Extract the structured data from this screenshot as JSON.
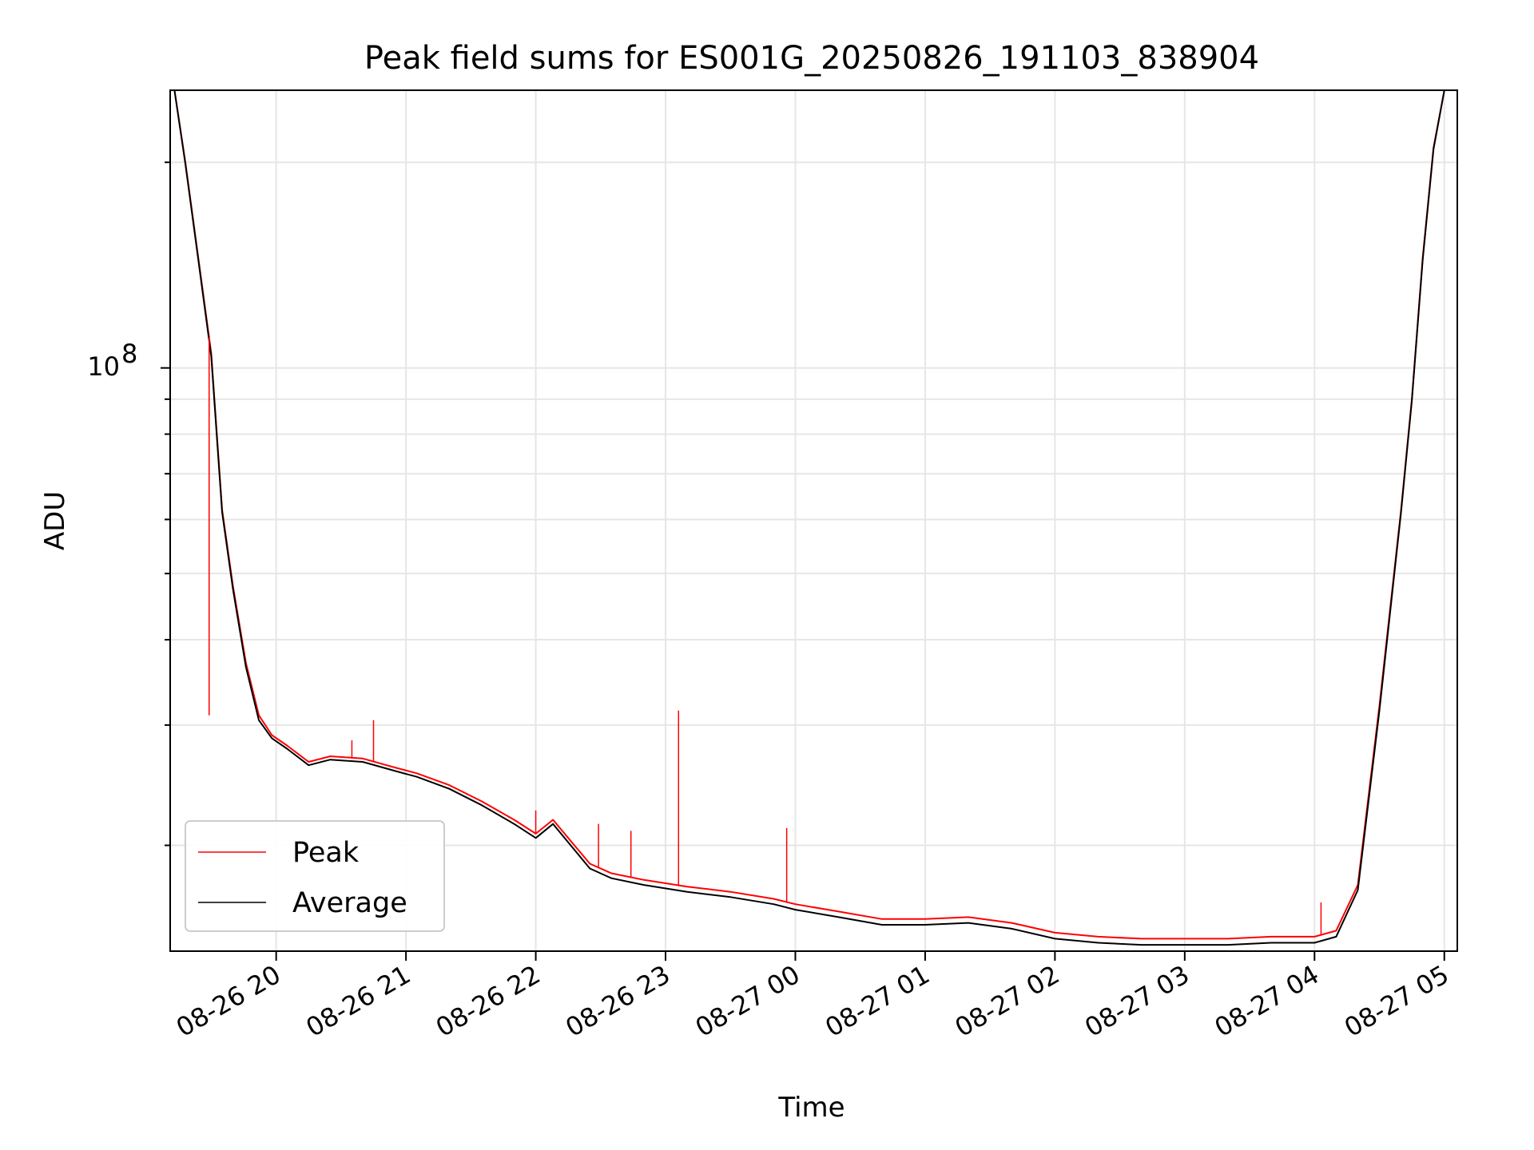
{
  "chart_data": {
    "type": "line",
    "title": "Peak field sums for ES001G_20250826_191103_838904",
    "xlabel": "Time",
    "ylabel": "ADU",
    "yscale": "log",
    "grid": true,
    "legend_position": "lower-left",
    "xlim": [
      "2025-08-26 19:11",
      "2025-08-27 05:06"
    ],
    "ylim": [
      14000000,
      255000000
    ],
    "x_ticks": [
      "08-26 20",
      "08-26 21",
      "08-26 22",
      "08-26 23",
      "08-27 00",
      "08-27 01",
      "08-27 02",
      "08-27 03",
      "08-27 04",
      "08-27 05"
    ],
    "y_tick_label": "10^8",
    "y_tick_base": "10",
    "y_tick_exponent": "8",
    "series": [
      {
        "name": "Peak",
        "color": "#ff0000",
        "x": [
          "2025-08-26 19:11",
          "2025-08-26 19:13",
          "2025-08-26 19:18",
          "2025-08-26 19:24",
          "2025-08-26 19:30",
          "2025-08-26 19:35",
          "2025-08-26 19:40",
          "2025-08-26 19:46",
          "2025-08-26 19:52",
          "2025-08-26 19:58",
          "2025-08-26 20:05",
          "2025-08-26 20:15",
          "2025-08-26 20:25",
          "2025-08-26 20:40",
          "2025-08-26 20:55",
          "2025-08-26 21:05",
          "2025-08-26 21:20",
          "2025-08-26 21:35",
          "2025-08-26 21:50",
          "2025-08-26 22:00",
          "2025-08-26 22:08",
          "2025-08-26 22:15",
          "2025-08-26 22:25",
          "2025-08-26 22:35",
          "2025-08-26 22:50",
          "2025-08-26 23:10",
          "2025-08-26 23:30",
          "2025-08-26 23:50",
          "2025-08-27 00:00",
          "2025-08-27 00:20",
          "2025-08-27 00:40",
          "2025-08-27 01:00",
          "2025-08-27 01:20",
          "2025-08-27 01:40",
          "2025-08-27 02:00",
          "2025-08-27 02:20",
          "2025-08-27 02:40",
          "2025-08-27 03:00",
          "2025-08-27 03:20",
          "2025-08-27 03:40",
          "2025-08-27 04:00",
          "2025-08-27 04:10",
          "2025-08-27 04:20",
          "2025-08-27 04:30",
          "2025-08-27 04:40",
          "2025-08-27 04:45",
          "2025-08-27 04:50",
          "2025-08-27 04:55",
          "2025-08-27 05:00",
          "2025-08-27 05:06"
        ],
        "y": [
          255000000,
          255000000,
          200000000,
          145000000,
          105000000,
          62000000,
          48000000,
          37000000,
          31000000,
          29000000,
          28000000,
          26500000,
          27000000,
          26800000,
          26000000,
          25500000,
          24500000,
          23200000,
          21800000,
          20800000,
          21800000,
          20500000,
          18800000,
          18200000,
          17800000,
          17400000,
          17100000,
          16700000,
          16400000,
          16000000,
          15600000,
          15600000,
          15700000,
          15400000,
          14900000,
          14700000,
          14600000,
          14600000,
          14600000,
          14700000,
          14700000,
          15000000,
          17500000,
          32000000,
          62000000,
          90000000,
          145000000,
          210000000,
          255000000,
          255000000
        ]
      },
      {
        "name": "Average",
        "color": "#000000",
        "x": [
          "2025-08-26 19:11",
          "2025-08-26 19:13",
          "2025-08-26 19:18",
          "2025-08-26 19:24",
          "2025-08-26 19:30",
          "2025-08-26 19:35",
          "2025-08-26 19:40",
          "2025-08-26 19:46",
          "2025-08-26 19:52",
          "2025-08-26 19:58",
          "2025-08-26 20:05",
          "2025-08-26 20:15",
          "2025-08-26 20:25",
          "2025-08-26 20:40",
          "2025-08-26 20:55",
          "2025-08-26 21:05",
          "2025-08-26 21:20",
          "2025-08-26 21:35",
          "2025-08-26 21:50",
          "2025-08-26 22:00",
          "2025-08-26 22:08",
          "2025-08-26 22:15",
          "2025-08-26 22:25",
          "2025-08-26 22:35",
          "2025-08-26 22:50",
          "2025-08-26 23:10",
          "2025-08-26 23:30",
          "2025-08-26 23:50",
          "2025-08-27 00:00",
          "2025-08-27 00:20",
          "2025-08-27 00:40",
          "2025-08-27 01:00",
          "2025-08-27 01:20",
          "2025-08-27 01:40",
          "2025-08-27 02:00",
          "2025-08-27 02:20",
          "2025-08-27 02:40",
          "2025-08-27 03:00",
          "2025-08-27 03:20",
          "2025-08-27 03:40",
          "2025-08-27 04:00",
          "2025-08-27 04:10",
          "2025-08-27 04:20",
          "2025-08-27 04:30",
          "2025-08-27 04:40",
          "2025-08-27 04:45",
          "2025-08-27 04:50",
          "2025-08-27 04:55",
          "2025-08-27 05:00",
          "2025-08-27 05:06"
        ],
        "y": [
          255000000,
          255000000,
          199000000,
          144000000,
          104000000,
          61500000,
          47500000,
          36500000,
          30500000,
          28700000,
          27700000,
          26200000,
          26700000,
          26500000,
          25700000,
          25200000,
          24200000,
          22900000,
          21500000,
          20500000,
          21500000,
          20200000,
          18500000,
          17900000,
          17500000,
          17100000,
          16800000,
          16400000,
          16100000,
          15700000,
          15300000,
          15300000,
          15400000,
          15100000,
          14600000,
          14400000,
          14300000,
          14300000,
          14300000,
          14400000,
          14400000,
          14700000,
          17200000,
          31500000,
          61500000,
          89500000,
          144000000,
          209000000,
          255000000,
          255000000
        ]
      }
    ],
    "spikes": [
      {
        "x": "2025-08-26 19:29",
        "y": 31000000
      },
      {
        "x": "2025-08-26 20:35",
        "y": 28500000
      },
      {
        "x": "2025-08-26 20:45",
        "y": 30500000
      },
      {
        "x": "2025-08-26 22:00",
        "y": 22500000
      },
      {
        "x": "2025-08-26 22:29",
        "y": 21500000
      },
      {
        "x": "2025-08-26 22:44",
        "y": 21000000
      },
      {
        "x": "2025-08-26 23:06",
        "y": 31500000
      },
      {
        "x": "2025-08-26 23:56",
        "y": 21200000
      },
      {
        "x": "2025-08-27 04:03",
        "y": 16500000
      }
    ]
  }
}
